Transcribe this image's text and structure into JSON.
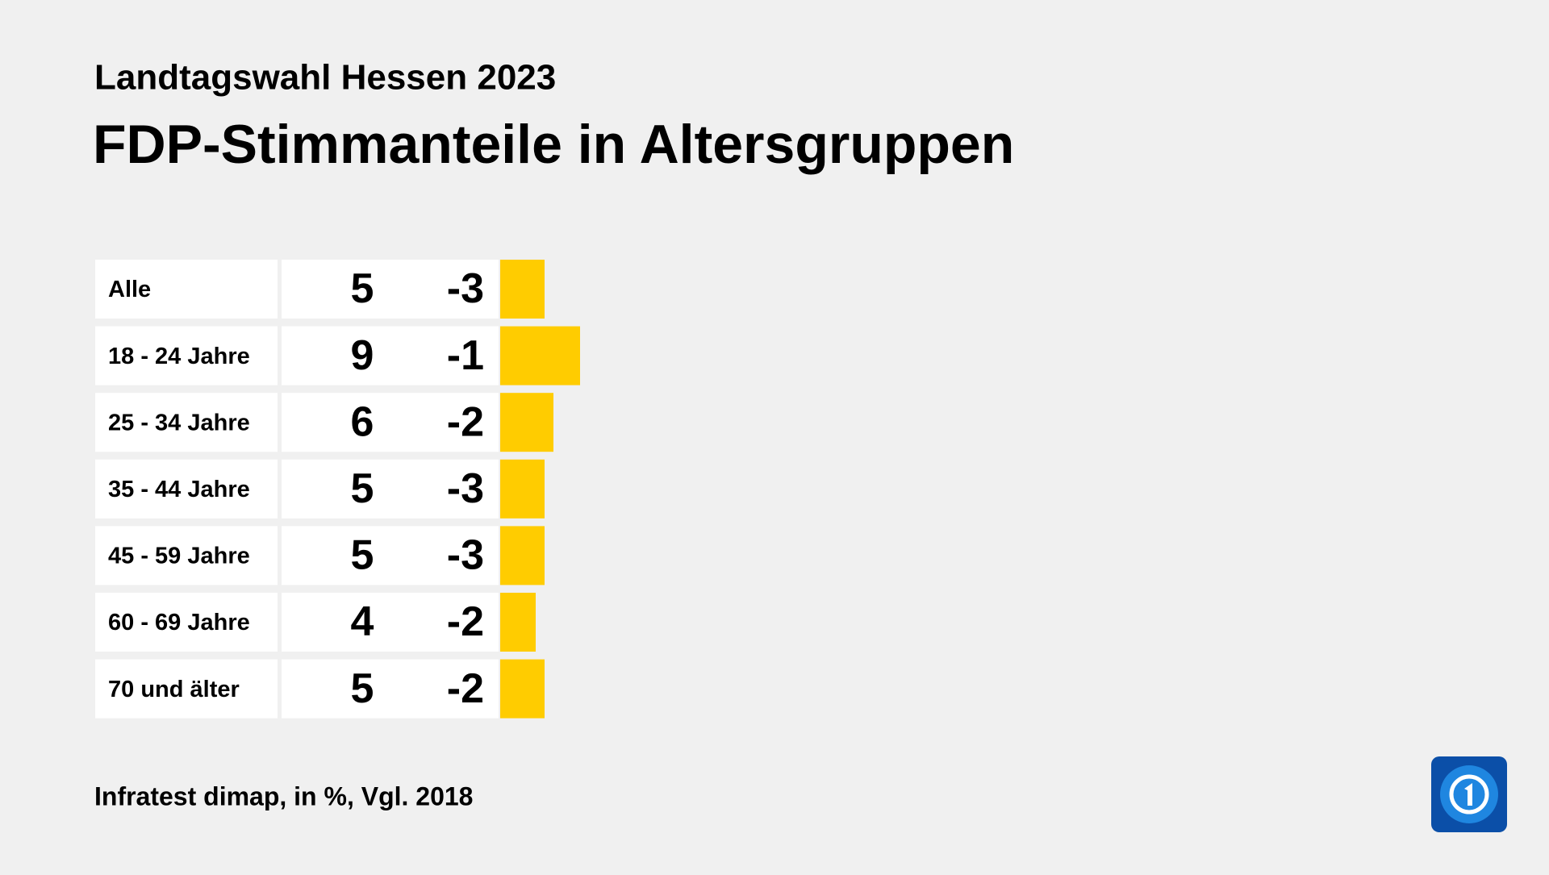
{
  "chart_data": {
    "type": "bar",
    "subtitle": "Landtagswahl Hessen 2023",
    "title": "FDP-Stimmanteile in Altersgruppen",
    "categories": [
      "Alle",
      "18 - 24 Jahre",
      "25 - 34 Jahre",
      "35 - 44 Jahre",
      "45 - 59 Jahre",
      "60 - 69 Jahre",
      "70 und älter"
    ],
    "values": [
      5,
      9,
      6,
      5,
      5,
      4,
      5
    ],
    "change": [
      -3,
      -1,
      -2,
      -3,
      -3,
      -2,
      -2
    ],
    "color": "#ffcc00",
    "source": "Infratest dimap, in %, Vgl. 2018"
  }
}
